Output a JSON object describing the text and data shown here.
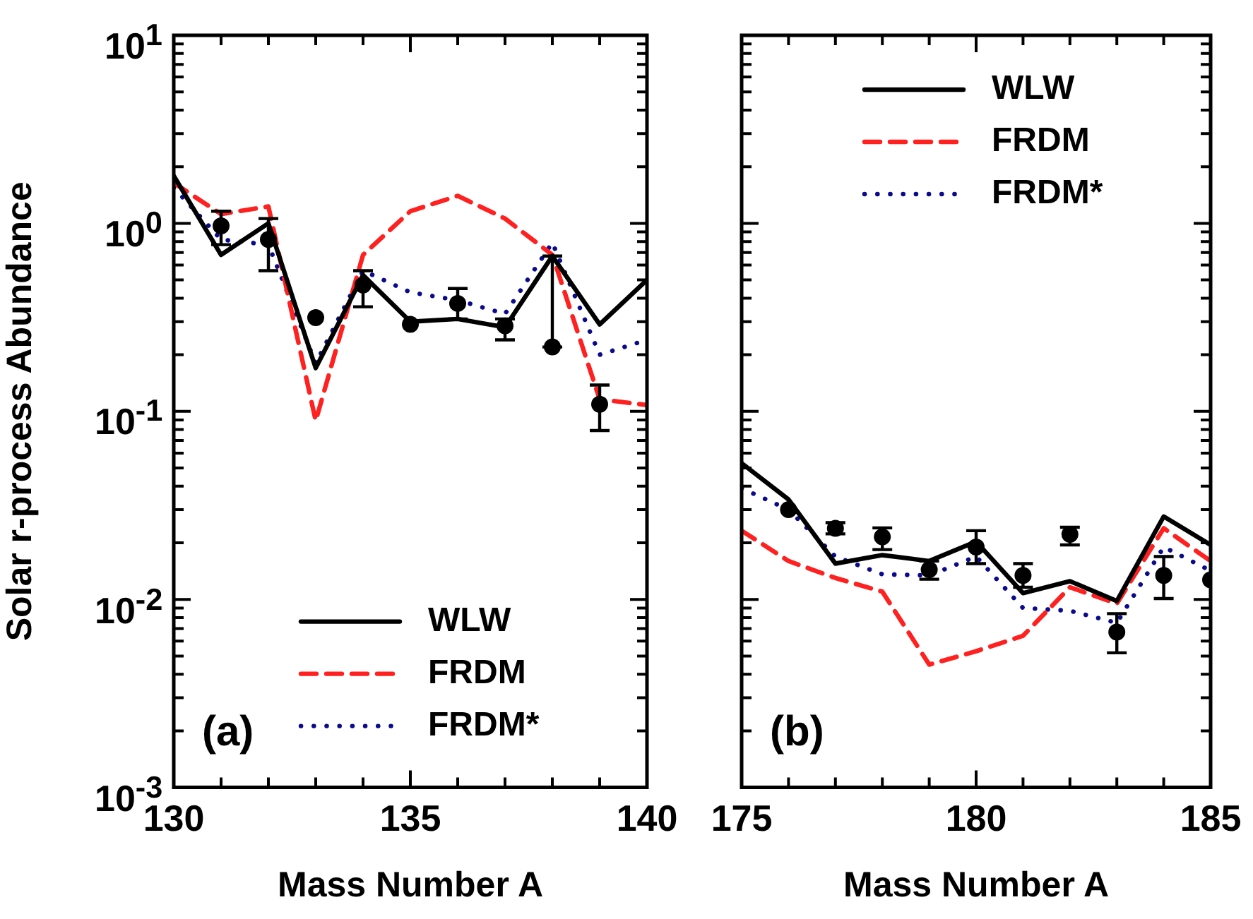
{
  "chart_data": [
    {
      "type": "line",
      "xlabel": "Mass Number A",
      "ylabel": "Solar r-process Abundance",
      "log": true,
      "legend": "bottom right",
      "xlim": [
        130,
        140
      ],
      "xticks": [
        130,
        135,
        140
      ],
      "ylim": [
        0.001,
        10
      ],
      "yticks": [
        {
          "value": 0.001,
          "label": "10$^{-3}$"
        },
        {
          "value": 0.01,
          "label": "10$^{-2}$"
        },
        {
          "value": 0.1,
          "label": "10$^{-1}$"
        },
        {
          "value": 1,
          "label": "10$^{0}$"
        },
        {
          "value": 10,
          "label": "10$^{1}$"
        }
      ],
      "x": [
        130,
        131,
        132,
        133,
        134,
        135,
        136,
        137,
        138,
        139,
        140
      ],
      "series": [
        {
          "name": "WLW",
          "color": "#000000",
          "line_style": "solid",
          "marker": "none",
          "values": [
            1.79,
            0.68,
            1.0,
            0.17,
            0.53,
            0.3,
            0.31,
            0.28,
            0.67,
            0.29,
            0.5
          ]
        },
        {
          "name": "FRDM",
          "color": "#ff2020",
          "line_style": "dashed",
          "marker": "none",
          "values": [
            1.64,
            1.12,
            1.23,
            0.089,
            0.68,
            1.16,
            1.4,
            1.06,
            0.68,
            0.116,
            0.108
          ]
        },
        {
          "name": "FRDM*",
          "color": "#0a0a8a",
          "line_style": "dotted",
          "marker": "none",
          "values": [
            1.55,
            0.82,
            0.77,
            0.18,
            0.56,
            0.43,
            0.39,
            0.33,
            0.79,
            0.2,
            0.24
          ]
        },
        {
          "type": "scatter",
          "color": "#000000",
          "marker": "circle",
          "values": [
            null,
            0.97,
            0.82,
            0.315,
            0.47,
            0.29,
            0.375,
            0.285,
            0.22,
            0.109,
            null
          ],
          "errors": [
            null,
            [
              0.77,
              1.16
            ],
            [
              0.56,
              1.06
            ],
            null,
            [
              0.36,
              0.56
            ],
            null,
            [
              0.31,
              0.45
            ],
            [
              0.24,
              0.31
            ],
            [
              0.22,
              0.67
            ],
            [
              0.079,
              0.138
            ],
            null
          ]
        }
      ],
      "annotations": [
        "(a)"
      ]
    },
    {
      "type": "line",
      "xlabel": "Mass Number A",
      "log": true,
      "legend": "top right",
      "tick_labels": "x",
      "xlim": [
        175,
        185
      ],
      "xticks": [
        175,
        180,
        185
      ],
      "ylim": [
        0.001,
        10
      ],
      "yticks": [
        {
          "value": 0.001,
          "label": null
        },
        {
          "value": 0.01,
          "label": null
        },
        {
          "value": 0.1,
          "label": null
        },
        {
          "value": 1,
          "label": null
        },
        {
          "value": 10,
          "label": null
        }
      ],
      "x": [
        175,
        176,
        177,
        178,
        179,
        180,
        181,
        182,
        183,
        184,
        185
      ],
      "series": [
        {
          "name": "WLW",
          "color": "#000000",
          "line_style": "solid",
          "marker": "none",
          "values": [
            0.053,
            0.034,
            0.0155,
            0.0172,
            0.016,
            0.0203,
            0.0108,
            0.0125,
            0.0098,
            0.0276,
            0.0195
          ]
        },
        {
          "name": "FRDM",
          "color": "#ff2020",
          "line_style": "dashed",
          "marker": "none",
          "values": [
            0.0232,
            0.016,
            0.013,
            0.011,
            0.0045,
            0.0053,
            0.0064,
            0.0116,
            0.0095,
            0.0239,
            0.016
          ]
        },
        {
          "name": "FRDM*",
          "color": "#0a0a8a",
          "line_style": "dotted",
          "marker": "none",
          "values": [
            0.039,
            0.03,
            0.0169,
            0.0136,
            0.0134,
            0.0169,
            0.009,
            0.0087,
            0.0075,
            0.019,
            0.0142
          ]
        },
        {
          "type": "scatter",
          "color": "#000000",
          "marker": "circle",
          "values": [
            null,
            0.03,
            0.0239,
            0.0215,
            0.0144,
            0.019,
            0.0134,
            0.0222,
            0.0067,
            0.0134,
            0.0127
          ],
          "errors": [
            null,
            null,
            [
              0.0223,
              0.0256
            ],
            [
              0.0184,
              0.024
            ],
            [
              0.0128,
              0.016
            ],
            [
              0.0155,
              0.0232
            ],
            [
              0.0116,
              0.0155
            ],
            [
              0.0195,
              0.0242
            ],
            [
              0.0052,
              0.0084
            ],
            [
              0.0101,
              0.0169
            ],
            null
          ]
        }
      ],
      "annotations": [
        "(b)"
      ]
    }
  ]
}
